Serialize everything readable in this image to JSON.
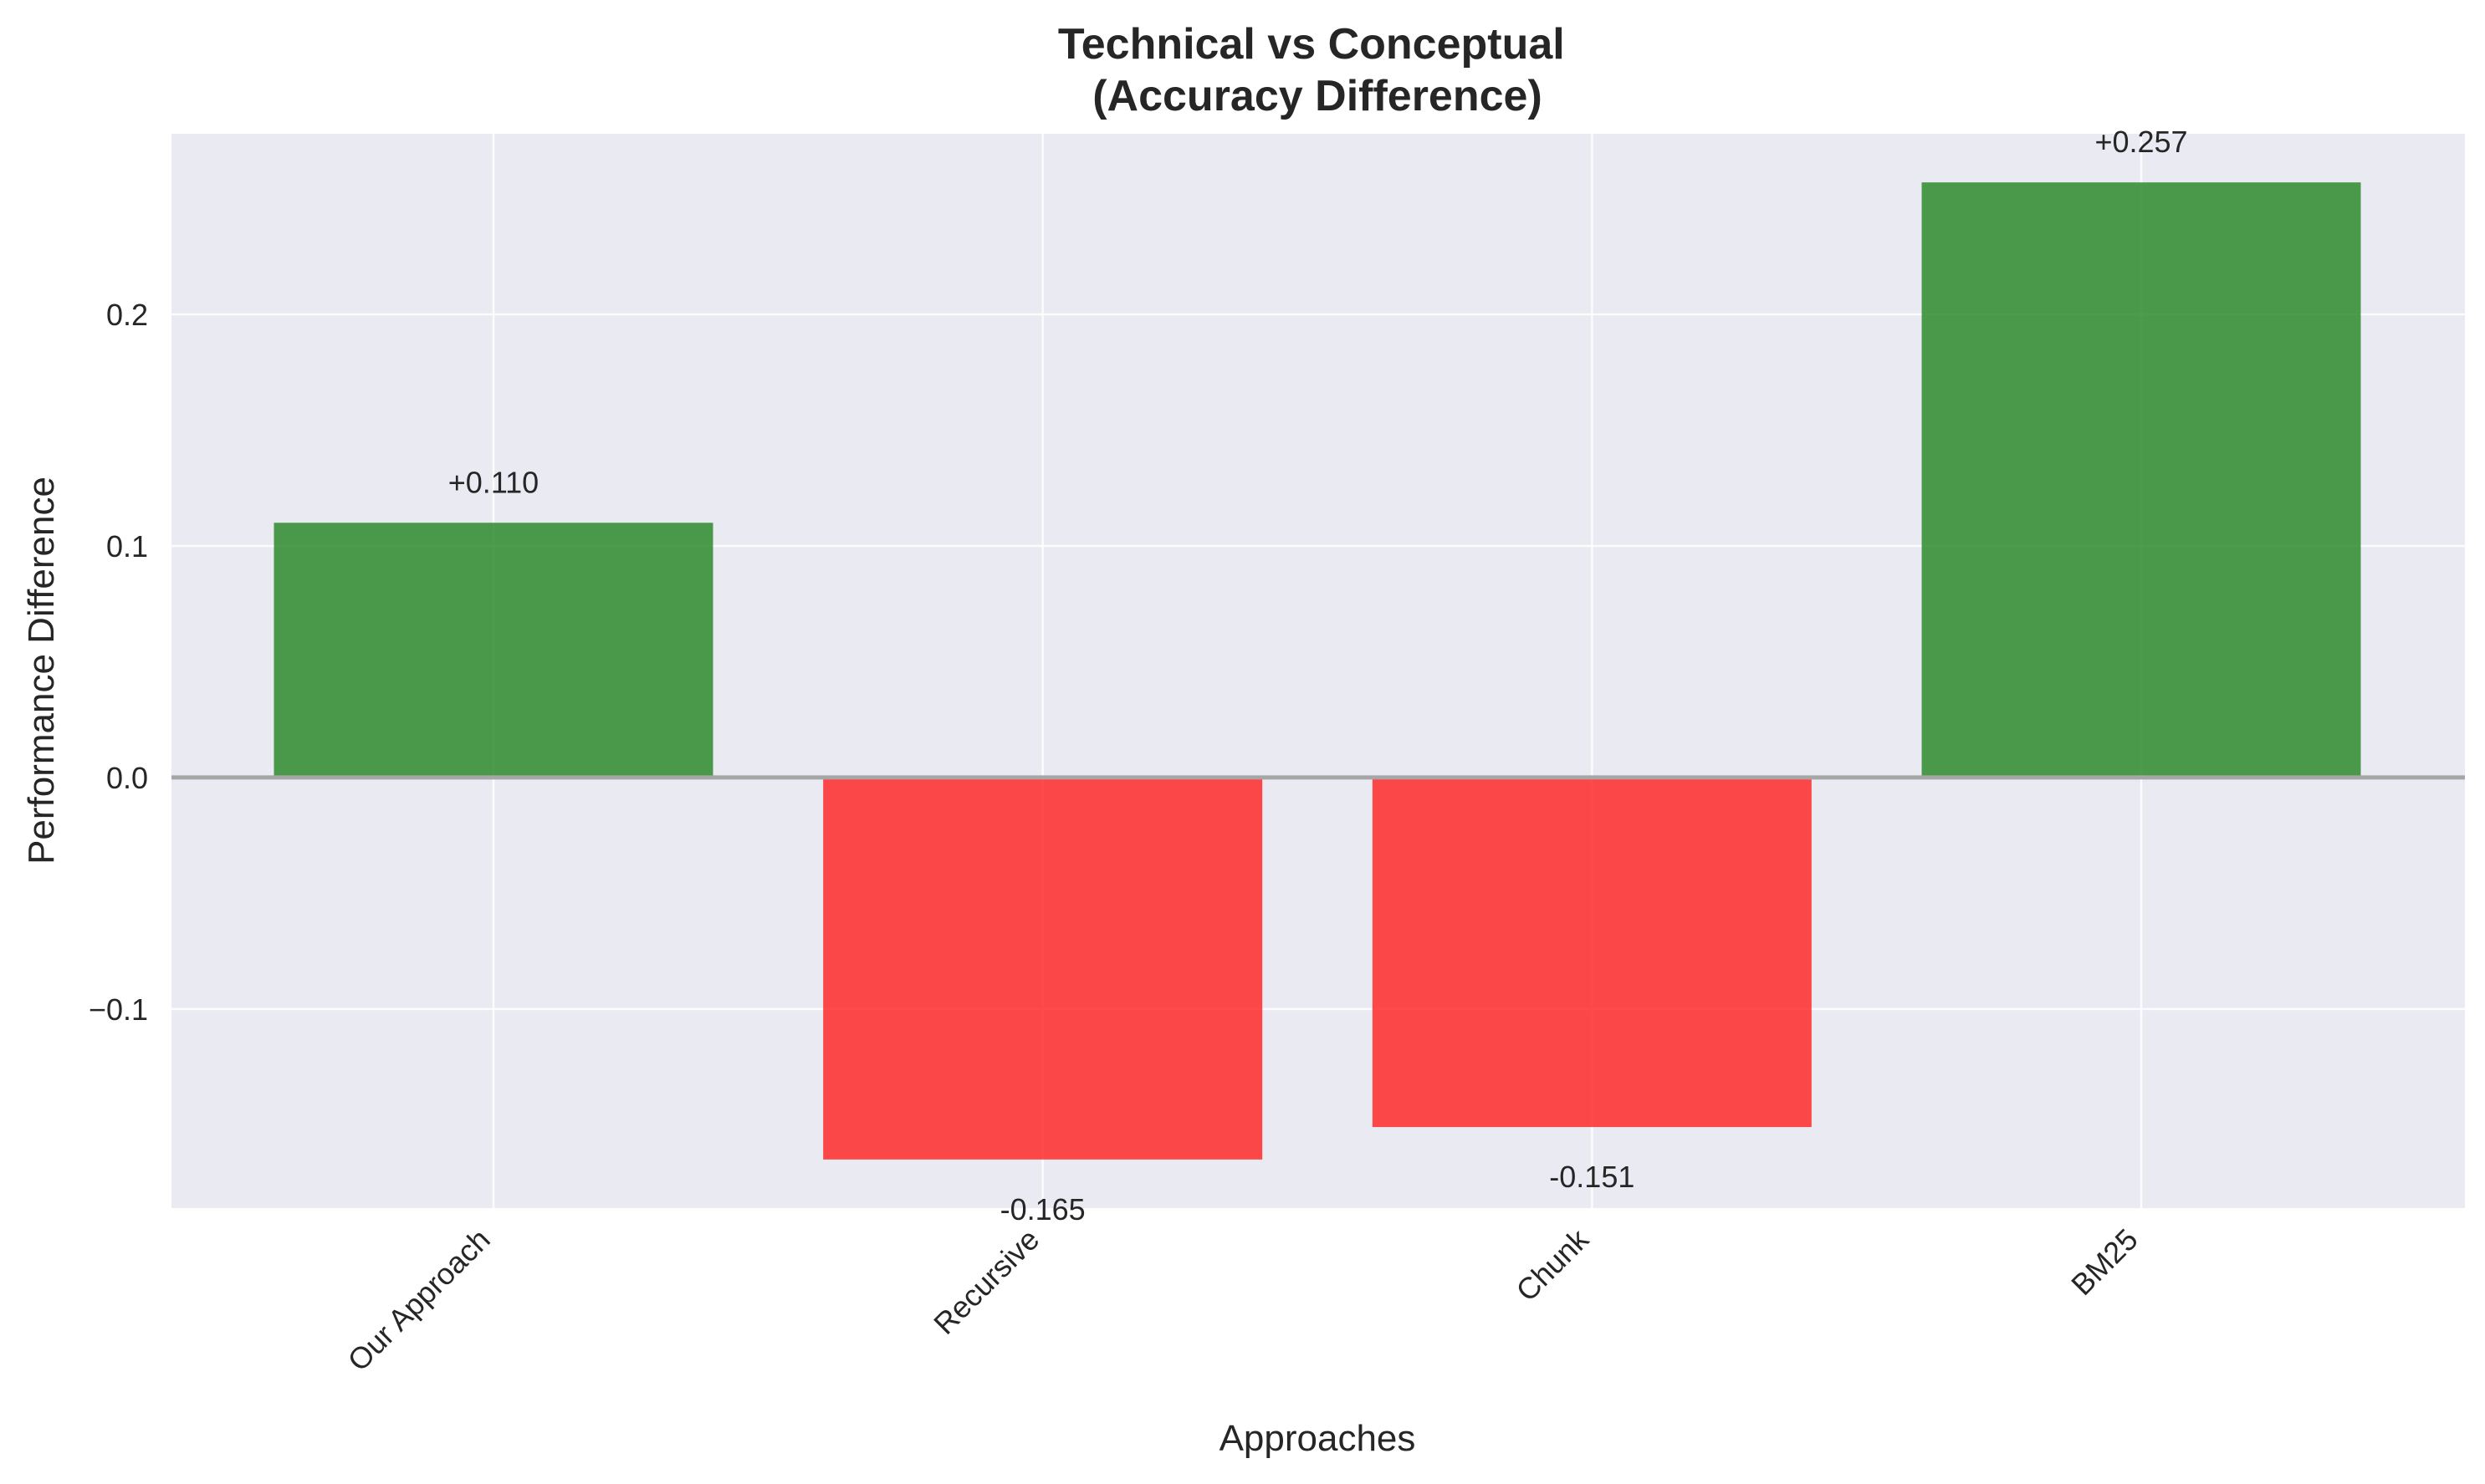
{
  "chart_data": {
    "type": "bar",
    "title": "Technical vs Conceptual\n(Accuracy Difference)",
    "title_lines": [
      "Technical vs Conceptual",
      "(Accuracy Difference)"
    ],
    "xlabel": "Approaches",
    "ylabel": "Performance Difference",
    "categories": [
      "Our Approach",
      "Recursive",
      "Chunk",
      "BM25"
    ],
    "values": [
      0.11,
      -0.165,
      -0.151,
      0.257
    ],
    "data_labels": [
      "+0.110",
      "-0.165",
      "-0.151",
      "+0.257"
    ],
    "ylim": [
      -0.186,
      0.278
    ],
    "yticks": [
      -0.1,
      0.0,
      0.1,
      0.2
    ],
    "ytick_labels": [
      "−0.1",
      "0.0",
      "0.1",
      "0.2"
    ],
    "grid": true,
    "colors": {
      "positive": "#2e8b2e",
      "negative": "#ff2a2a",
      "plot_background": "#eaeaf2",
      "zero_line": "#a6a6a6",
      "grid": "#ffffff"
    }
  }
}
